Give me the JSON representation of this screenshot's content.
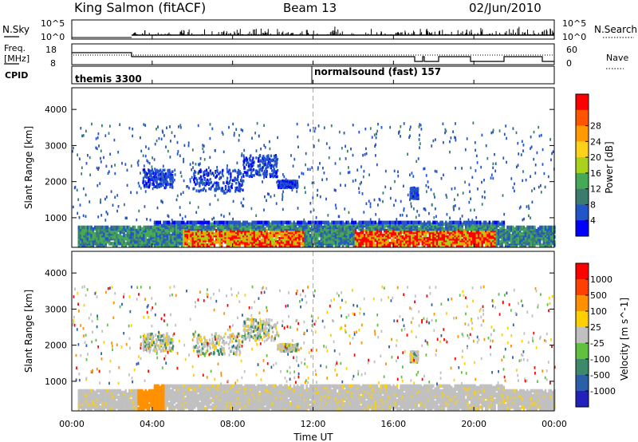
{
  "header": {
    "station": "King Salmon (fitACF)",
    "beam": "Beam 13",
    "date": "02/Jun/2010"
  },
  "panels": {
    "nsky": {
      "label": "N.Sky",
      "ticks": [
        "10^5",
        "10^0"
      ],
      "right_label": "N.Search",
      "right_ticks": [
        "10^5",
        "10^0"
      ]
    },
    "freq": {
      "label1": "Freq.",
      "label2": "[MHz]",
      "ticks": [
        "18",
        "8"
      ],
      "right_label": "Nave",
      "right_ticks": [
        "60",
        "0"
      ]
    },
    "cpid": {
      "label": "CPID",
      "segments": [
        {
          "name": "themis 3300",
          "start": 0,
          "end": 12
        },
        {
          "name": "normalsound (fast) 157",
          "start": 12,
          "end": 24
        }
      ]
    }
  },
  "chart_data": [
    {
      "type": "heatmap",
      "name": "power",
      "ylabel": "Slant Range [km]",
      "yticks": [
        1000,
        2000,
        3000,
        4000
      ],
      "ylim": [
        180,
        4600
      ],
      "colorbar_label": "Power [dB]",
      "colorbar_ticks": [
        "4",
        "8",
        "12",
        "16",
        "20",
        "24",
        "28"
      ],
      "colorbar_colors": [
        "#0000ff",
        "#2255c8",
        "#3c7c6e",
        "#45aa58",
        "#aad21a",
        "#ffd21a",
        "#ff9a00",
        "#ff5500",
        "#ff0000"
      ],
      "vertical_marker_x": 12
    },
    {
      "type": "heatmap",
      "name": "velocity",
      "ylabel": "Slant Range [km]",
      "yticks": [
        1000,
        2000,
        3000,
        4000
      ],
      "ylim": [
        180,
        4600
      ],
      "colorbar_label": "Velocity [m s^-1]",
      "colorbar_ticks": [
        "1000",
        "500",
        "100",
        "25",
        "-25",
        "-100",
        "-500",
        "-1000"
      ],
      "colorbar_colors": [
        "#2222bb",
        "#2a60a8",
        "#3c8a6a",
        "#60c040",
        "#c0c0c0",
        "#ffd000",
        "#ff9000",
        "#ff4000",
        "#ff0000"
      ],
      "vertical_marker_x": 12
    }
  ],
  "xaxis": {
    "label": "Time UT",
    "ticks": [
      "00:00",
      "04:00",
      "08:00",
      "12:00",
      "16:00",
      "20:00",
      "00:00"
    ],
    "range_hours": [
      0,
      24
    ]
  }
}
